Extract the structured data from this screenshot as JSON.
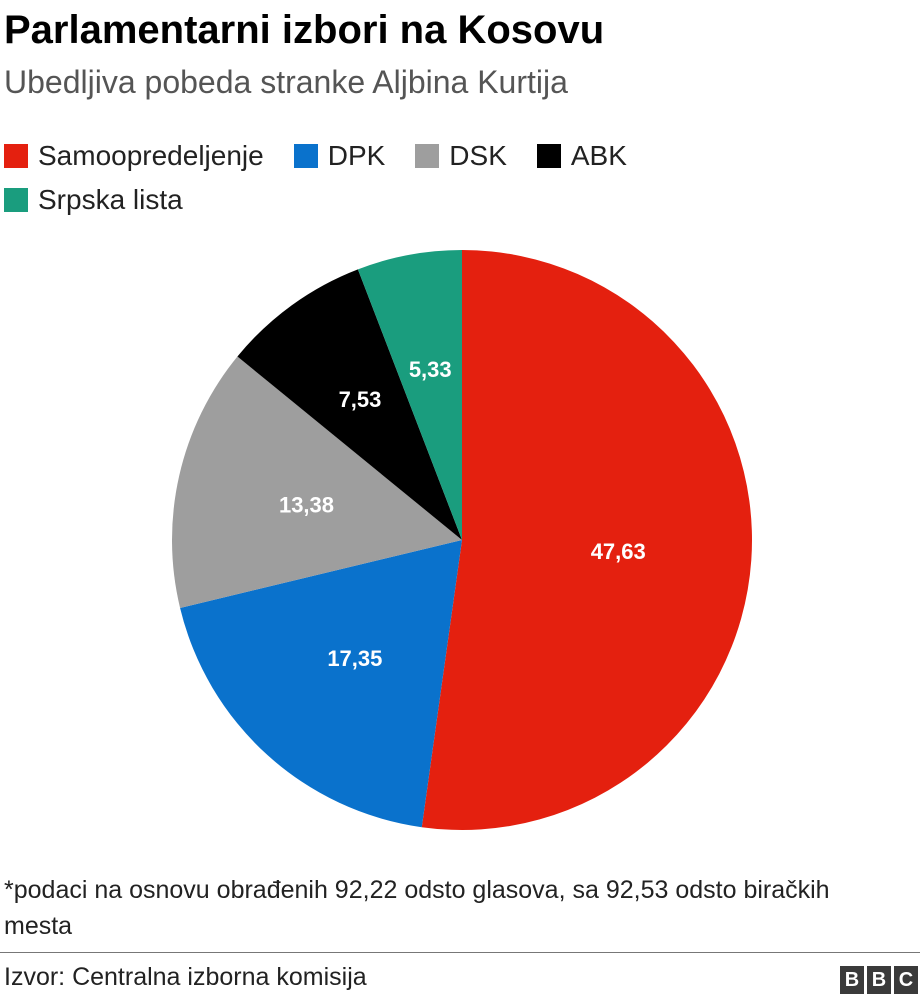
{
  "chart_data": {
    "type": "pie",
    "title": "Parlamentarni izbori na Kosovu",
    "subtitle": "Ubedljiva pobeda stranke Aljbina Kurtija",
    "slices": [
      {
        "name": "Samoopredeljenje",
        "value": 47.63,
        "label": "47,63",
        "color": "#e4200f"
      },
      {
        "name": "DPK",
        "value": 17.35,
        "label": "17,35",
        "color": "#0a72cc"
      },
      {
        "name": "DSK",
        "value": 13.38,
        "label": "13,38",
        "color": "#9e9e9e"
      },
      {
        "name": "ABK",
        "value": 7.53,
        "label": "7,53",
        "color": "#000000"
      },
      {
        "name": "Srpska lista",
        "value": 5.33,
        "label": "5,33",
        "color": "#1a9d7e"
      }
    ],
    "legend_position": "top-left"
  },
  "note": "*podaci na osnovu obrađenih 92,22 odsto glasova, sa 92,53 odsto biračkih mesta",
  "source": "Izvor: Centralna izborna komisija",
  "logo": {
    "letters": [
      "B",
      "B",
      "C"
    ]
  }
}
